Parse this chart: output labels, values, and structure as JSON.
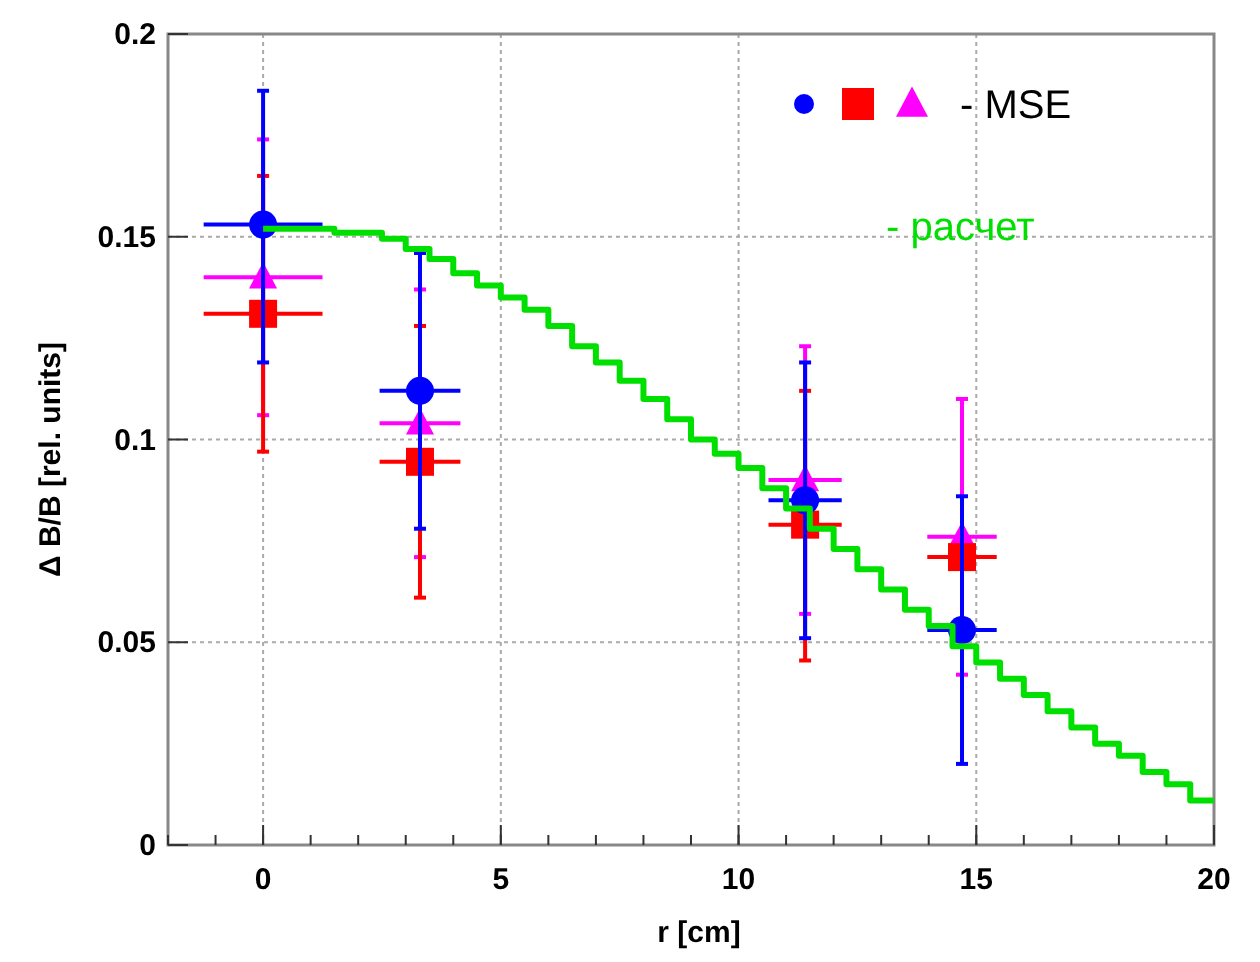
{
  "chart_data": {
    "type": "scatter",
    "xlabel": "r [cm]",
    "ylabel": "Δ B/B [rel. units]",
    "xlim": [
      -2,
      20
    ],
    "ylim": [
      0,
      0.2
    ],
    "xticks": [
      0,
      5,
      10,
      15,
      20
    ],
    "yticks": [
      0,
      0.05,
      0.1,
      0.15,
      0.2
    ],
    "grid": true,
    "annotations": [
      "- MSE"
    ],
    "series": [
      {
        "type": "step",
        "name": "- расчет",
        "color": "#00e000",
        "x": [
          0,
          0.5,
          1,
          1.5,
          2,
          2.5,
          3,
          3.5,
          4,
          4.5,
          5,
          5.5,
          6,
          6.5,
          7,
          7.5,
          8,
          8.5,
          9,
          9.5,
          10,
          10.5,
          11,
          11.5,
          12,
          12.5,
          13,
          13.5,
          14,
          14.5,
          15,
          15.5,
          16,
          16.5,
          17,
          17.5,
          18,
          18.5,
          19,
          19.5,
          20
        ],
        "values": [
          0.152,
          0.152,
          0.152,
          0.151,
          0.151,
          0.1495,
          0.147,
          0.1445,
          0.141,
          0.138,
          0.135,
          0.132,
          0.128,
          0.123,
          0.119,
          0.1145,
          0.11,
          0.105,
          0.1,
          0.0965,
          0.093,
          0.088,
          0.083,
          0.078,
          0.073,
          0.068,
          0.063,
          0.058,
          0.054,
          0.049,
          0.045,
          0.041,
          0.037,
          0.033,
          0.029,
          0.025,
          0.022,
          0.018,
          0.015,
          0.011,
          0.011
        ]
      },
      {
        "color": "#0000ff",
        "marker": "circle",
        "x": [
          0,
          3.3,
          11.4,
          14.7
        ],
        "values": [
          0.153,
          0.112,
          0.085,
          0.053
        ],
        "errors": [
          [
            0.119,
            0.186
          ],
          [
            0.078,
            0.146
          ],
          [
            0.051,
            0.119
          ],
          [
            0.02,
            0.086
          ]
        ],
        "xerrors": [
          [
            -1.25,
            1.25
          ],
          [
            2.45,
            4.15
          ],
          [
            10.63,
            12.17
          ],
          [
            13.97,
            15.43
          ]
        ]
      },
      {
        "color": "#ff0000",
        "marker": "square",
        "x": [
          0,
          3.3,
          11.4,
          14.7
        ],
        "values": [
          0.131,
          0.0945,
          0.079,
          0.071
        ],
        "errors": [
          [
            0.097,
            0.165
          ],
          [
            0.061,
            0.128
          ],
          [
            0.0455,
            0.112
          ],
          null
        ],
        "xerrors": [
          [
            -1.25,
            1.25
          ],
          [
            2.45,
            4.15
          ],
          [
            10.63,
            12.17
          ],
          [
            13.97,
            15.43
          ]
        ]
      },
      {
        "color": "#ff00ff",
        "marker": "triangle",
        "x": [
          0,
          3.3,
          11.4,
          14.7
        ],
        "values": [
          0.14,
          0.104,
          0.09,
          0.076
        ],
        "errors": [
          [
            0.106,
            0.174
          ],
          [
            0.071,
            0.137
          ],
          [
            0.057,
            0.123
          ],
          [
            0.042,
            0.11
          ]
        ],
        "xerrors": [
          [
            -1.25,
            1.25
          ],
          [
            2.45,
            4.15
          ],
          [
            10.63,
            12.17
          ],
          [
            13.97,
            15.43
          ]
        ]
      }
    ]
  }
}
